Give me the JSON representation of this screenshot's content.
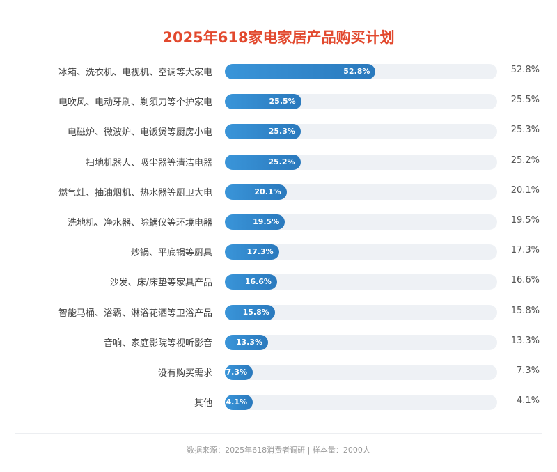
{
  "chart_data": {
    "type": "bar",
    "orientation": "horizontal",
    "title": "2025年618家电家居产品购买计划",
    "categories": [
      "冰箱、洗衣机、电视机、空调等大家电",
      "电吹风、电动牙刷、剃须刀等个护家电",
      "电磁炉、微波炉、电饭煲等厨房小电",
      "扫地机器人、吸尘器等清洁电器",
      "燃气灶、抽油烟机、热水器等厨卫大电",
      "洗地机、净水器、除螨仪等环境电器",
      "炒锅、平底锅等厨具",
      "沙发、床/床垫等家具产品",
      "智能马桶、浴霸、淋浴花洒等卫浴产品",
      "音响、家庭影院等视听影音",
      "没有购买需求",
      "其他"
    ],
    "values": [
      52.8,
      25.5,
      25.3,
      25.2,
      20.1,
      19.5,
      17.3,
      16.6,
      15.8,
      13.3,
      7.3,
      4.1
    ],
    "unit": "%",
    "xlim": [
      0,
      100
    ],
    "grid": false,
    "colors": {
      "bar": "#2a85cc",
      "track": "#eef1f5",
      "title": "#e2492e"
    }
  },
  "footer": "数据来源：2025年618消费者调研 | 样本量：2000人"
}
